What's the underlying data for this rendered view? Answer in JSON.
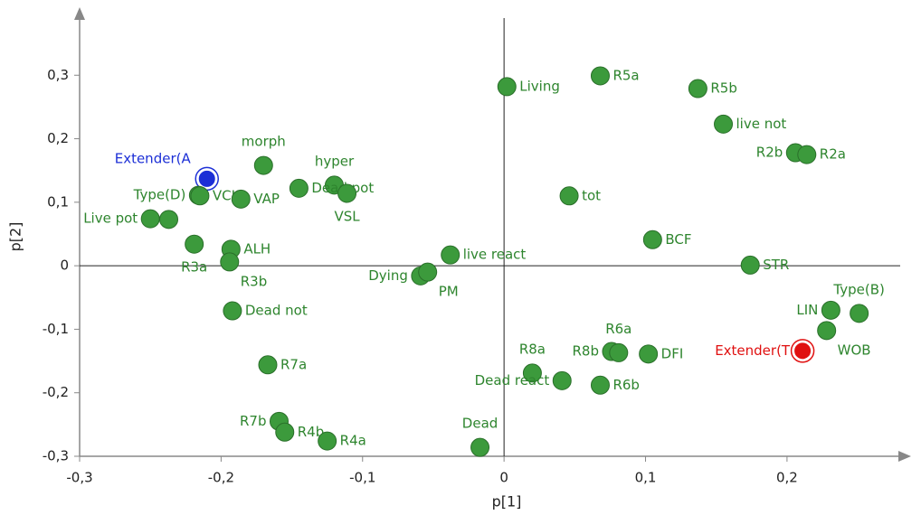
{
  "chart_data": {
    "type": "scatter",
    "x_label": "p[1]",
    "y_label": "p[2]",
    "xlim": [
      -0.3,
      0.28
    ],
    "ylim": [
      -0.3,
      0.39
    ],
    "xticks": [
      {
        "value": -0.3,
        "label": "-0,3"
      },
      {
        "value": -0.2,
        "label": "-0,2"
      },
      {
        "value": -0.1,
        "label": "-0,1"
      },
      0,
      {
        "value": 0.1,
        "label": "0,1"
      },
      {
        "value": 0.2,
        "label": "0,2"
      }
    ],
    "yticks": [
      {
        "value": -0.3,
        "label": "-0,3"
      },
      {
        "value": -0.2,
        "label": "-0,2"
      },
      {
        "value": -0.1,
        "label": "-0,1"
      },
      0,
      {
        "value": 0.1,
        "label": "0,1"
      },
      {
        "value": 0.2,
        "label": "0,2"
      },
      {
        "value": 0.3,
        "label": "0,3"
      }
    ],
    "labels": [
      "Living",
      "R5a",
      "R5b",
      "live not",
      "R2b",
      "R2a",
      "tot",
      "BCF",
      "STR",
      "live react",
      "Dying",
      "PM",
      "Type(B)",
      "LIN",
      "WOB",
      "Extender(T",
      "R8b",
      "R6a",
      "DFI",
      "R8a",
      "Dead react",
      "R6b",
      "Dead",
      "morph",
      "hyper",
      "Dead pot",
      "VSL",
      "Extender(A",
      "Type(D)",
      "VCL",
      "VAP",
      "Live pot",
      null,
      "R3a",
      "ALH",
      "R3b",
      "Dead not",
      "R7a",
      "R7b",
      "R4b",
      "R4a"
    ],
    "x": [
      0.002,
      0.068,
      0.137,
      0.155,
      0.206,
      0.214,
      0.046,
      0.105,
      0.174,
      -0.038,
      -0.059,
      -0.054,
      0.251,
      0.231,
      0.228,
      0.211,
      0.076,
      0.081,
      0.102,
      0.02,
      0.041,
      0.068,
      -0.017,
      -0.17,
      -0.12,
      -0.145,
      -0.111,
      -0.21,
      -0.216,
      -0.215,
      -0.186,
      -0.25,
      -0.237,
      -0.219,
      -0.193,
      -0.194,
      -0.192,
      -0.167,
      -0.159,
      -0.155,
      -0.125
    ],
    "values": [
      0.282,
      0.299,
      0.279,
      0.223,
      0.178,
      0.175,
      0.11,
      0.041,
      0.001,
      0.017,
      -0.016,
      -0.01,
      -0.075,
      -0.07,
      -0.102,
      -0.134,
      -0.135,
      -0.137,
      -0.139,
      -0.169,
      -0.181,
      -0.188,
      -0.286,
      0.158,
      0.127,
      0.122,
      0.114,
      0.137,
      0.111,
      0.11,
      0.105,
      0.074,
      0.073,
      0.034,
      0.026,
      0.006,
      -0.071,
      -0.156,
      -0.245,
      -0.262,
      -0.276
    ],
    "color": "#3c9a3c",
    "highlight_colors": {
      "15": "#e01010",
      "27": "#1c2fd6"
    }
  }
}
